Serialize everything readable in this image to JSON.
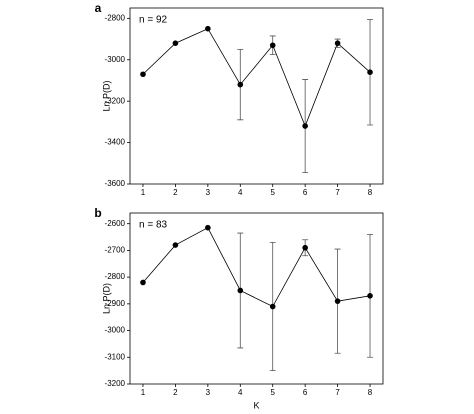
{
  "chart_data": [
    {
      "type": "line",
      "panel_label": "a",
      "annotation": "n = 92",
      "y_label": "Ln P(D)",
      "x": [
        1,
        2,
        3,
        4,
        5,
        6,
        7,
        8
      ],
      "xlim": [
        0.6,
        8.4
      ],
      "xticks": [
        1,
        2,
        3,
        4,
        5,
        6,
        7,
        8
      ],
      "ylim": [
        -3600,
        -2750
      ],
      "yticks": [
        -3600,
        -3400,
        -3200,
        -3000,
        -2800
      ],
      "series": [
        {
          "color": "#000000",
          "values": [
            -3070,
            -2920,
            -2850,
            -3120,
            -2930,
            -3320,
            -2920,
            -3060
          ],
          "errors": [
            null,
            null,
            null,
            170,
            45,
            225,
            20,
            255
          ]
        }
      ]
    },
    {
      "type": "line",
      "panel_label": "b",
      "annotation": "n = 83",
      "y_label": "Ln P(D)",
      "x_label": "K",
      "x": [
        1,
        2,
        3,
        4,
        5,
        6,
        7,
        8
      ],
      "xlim": [
        0.6,
        8.4
      ],
      "xticks": [
        1,
        2,
        3,
        4,
        5,
        6,
        7,
        8
      ],
      "ylim": [
        -3200,
        -2560
      ],
      "yticks": [
        -3200,
        -3100,
        -3000,
        -2900,
        -2800,
        -2700,
        -2600
      ],
      "series": [
        {
          "color": "#000000",
          "values": [
            -2820,
            -2680,
            -2615,
            -2850,
            -2910,
            -2690,
            -2890,
            -2870
          ],
          "errors": [
            null,
            null,
            null,
            215,
            240,
            30,
            195,
            230
          ]
        }
      ]
    }
  ]
}
